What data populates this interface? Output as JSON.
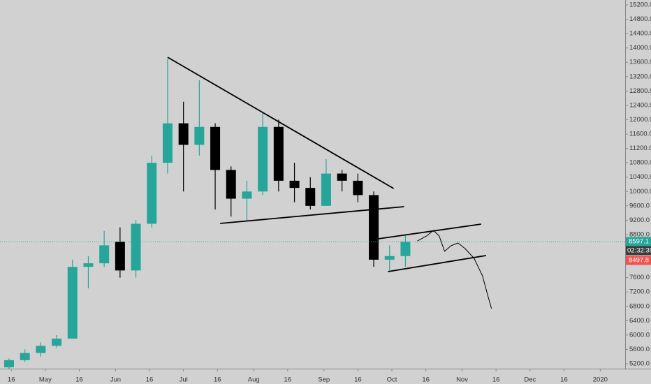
{
  "chart_data": {
    "type": "candlestick",
    "x": [
      105,
      112,
      119,
      126,
      133,
      140,
      147,
      154,
      161,
      168,
      175,
      182,
      189,
      196,
      203,
      210,
      217,
      224,
      231,
      238,
      245,
      252,
      259,
      266,
      273,
      280
    ],
    "open": [
      5100,
      5300,
      5500,
      5700,
      5900,
      7900,
      8000,
      8600,
      7800,
      9100,
      10800,
      11900,
      11300,
      11800,
      10600,
      9800,
      10000,
      11800,
      10300,
      10100,
      9600,
      10500,
      10300,
      9900,
      8100,
      8200
    ],
    "high": [
      5350,
      5600,
      5800,
      6000,
      8100,
      8200,
      8900,
      9000,
      9200,
      11000,
      13700,
      12500,
      13100,
      11900,
      10700,
      10300,
      12200,
      12000,
      10800,
      10400,
      10900,
      10600,
      10500,
      10000,
      8500,
      8800
    ],
    "low": [
      5050,
      5250,
      5400,
      5650,
      5900,
      7300,
      7900,
      7600,
      7600,
      9000,
      10500,
      10000,
      11000,
      9500,
      9300,
      9200,
      9900,
      10000,
      9700,
      9500,
      9600,
      10000,
      9700,
      7900,
      7800,
      7900
    ],
    "close": [
      5300,
      5500,
      5700,
      5900,
      7900,
      8000,
      8500,
      7800,
      9100,
      10800,
      11900,
      11300,
      11800,
      10600,
      9800,
      10000,
      11800,
      10300,
      10100,
      9600,
      10500,
      10300,
      9900,
      8100,
      8200,
      8600
    ],
    "up_color": "#26a69a",
    "down_color": "#000000",
    "xlim": [
      101,
      377
    ],
    "ylim": [
      5064,
      15336
    ],
    "xticks": [
      {
        "value": 106,
        "label": "16"
      },
      {
        "value": 121,
        "label": "May"
      },
      {
        "value": 136,
        "label": "16"
      },
      {
        "value": 152,
        "label": "Jun"
      },
      {
        "value": 167,
        "label": "16"
      },
      {
        "value": 182,
        "label": "Jul"
      },
      {
        "value": 197,
        "label": "16"
      },
      {
        "value": 213,
        "label": "Aug"
      },
      {
        "value": 228,
        "label": "16"
      },
      {
        "value": 244,
        "label": "Sep"
      },
      {
        "value": 259,
        "label": "16"
      },
      {
        "value": 274,
        "label": "Oct"
      },
      {
        "value": 289,
        "label": "16"
      },
      {
        "value": 305,
        "label": "Nov"
      },
      {
        "value": 320,
        "label": "16"
      },
      {
        "value": 335,
        "label": "Dec"
      },
      {
        "value": 350,
        "label": "16"
      },
      {
        "value": 366,
        "label": "2020"
      }
    ],
    "yticks": [
      {
        "value": 5200,
        "label": "5200.0"
      },
      {
        "value": 5600,
        "label": "5600.0"
      },
      {
        "value": 6000,
        "label": "6000.0"
      },
      {
        "value": 6400,
        "label": "6400.0"
      },
      {
        "value": 6800,
        "label": "6800.0"
      },
      {
        "value": 7200,
        "label": "7200.0"
      },
      {
        "value": 7600,
        "label": "7600.0"
      },
      {
        "value": 8000,
        "label": "8000.0"
      },
      {
        "value": 8400,
        "label": "8400.0"
      },
      {
        "value": 8800,
        "label": "8800.0"
      },
      {
        "value": 9200,
        "label": "9200.0"
      },
      {
        "value": 9600,
        "label": "9600.0"
      },
      {
        "value": 10000,
        "label": "10000.0"
      },
      {
        "value": 10400,
        "label": "10400.0"
      },
      {
        "value": 10800,
        "label": "10800.0"
      },
      {
        "value": 11200,
        "label": "11200.0"
      },
      {
        "value": 11600,
        "label": "11600.0"
      },
      {
        "value": 12000,
        "label": "12000.0"
      },
      {
        "value": 12400,
        "label": "12400.0"
      },
      {
        "value": 12800,
        "label": "12800.0"
      },
      {
        "value": 13200,
        "label": "13200.0"
      },
      {
        "value": 13600,
        "label": "13600.0"
      },
      {
        "value": 14000,
        "label": "14000.0"
      },
      {
        "value": 14400,
        "label": "14400.0"
      },
      {
        "value": 14800,
        "label": "14800.0"
      },
      {
        "value": 15200,
        "label": "15200.0"
      }
    ],
    "price_labels": [
      {
        "value": 8597.1,
        "color": "#26a69a"
      },
      {
        "value": 8497.8,
        "color": "#ef5350"
      }
    ],
    "countdown": "02:32:39",
    "drawings": [
      {
        "color": "#000000",
        "x": [
          175,
          274.8
        ],
        "y": [
          13741,
          10083
        ]
      },
      {
        "color": "#000000",
        "x": [
          198.2,
          279.4
        ],
        "y": [
          9110,
          9578
        ]
      },
      {
        "color": "#000000",
        "x": [
          268,
          313.4
        ],
        "y": [
          8682,
          9091
        ]
      },
      {
        "color": "#000000",
        "x": [
          272.3,
          315.6
        ],
        "y": [
          7768,
          8216
        ]
      },
      {
        "color": "#000000",
        "x": [
          285.3,
          289.3,
          292.4,
          294.9,
          297.3,
          300.1,
          303.2,
          306.3,
          310.3,
          314.0,
          316.5,
          318.0
        ],
        "y": [
          8624,
          8760,
          8916,
          8760,
          8332,
          8488,
          8566,
          8410,
          8138,
          7651,
          7068,
          6737
        ]
      }
    ]
  }
}
